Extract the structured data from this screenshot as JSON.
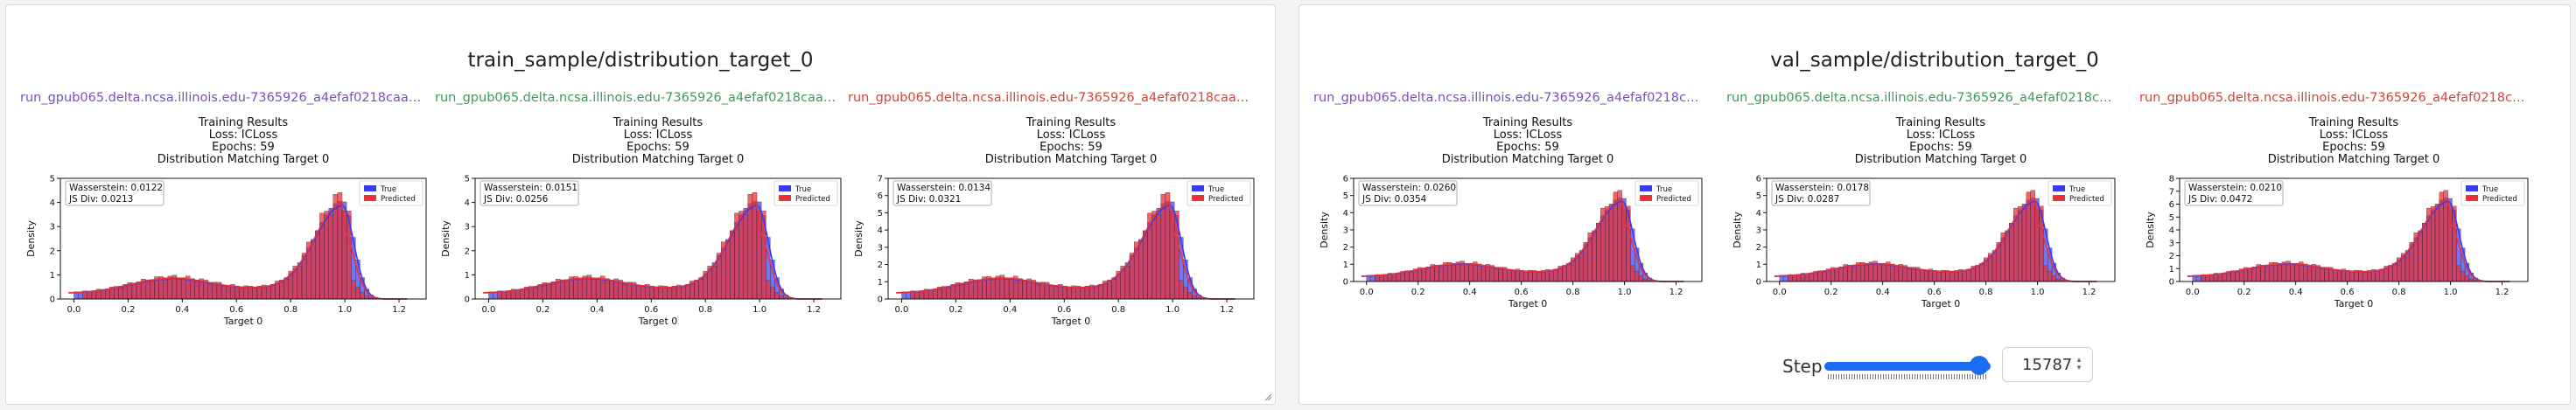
{
  "panels": [
    {
      "title": "train_sample/distribution_target_0",
      "charts": [
        {
          "run": "run_gpub065.delta.ncsa.illinois.edu-7365926_a4efaf0218caa7b49376cae...",
          "run_color": "#7b4fbf",
          "title_lines": [
            "Training Results",
            "Loss: ICLoss",
            "Epochs: 59",
            "Distribution Matching Target 0"
          ],
          "wasserstein": "Wasserstein: 0.0122",
          "js": "JS Div: 0.0213",
          "ymax": 5,
          "yticks": [
            0,
            1,
            2,
            3,
            4,
            5
          ]
        },
        {
          "run": "run_gpub065.delta.ncsa.illinois.edu-7365926_a4efaf0218caa7b49376cae...",
          "run_color": "#3f9a5b",
          "title_lines": [
            "Training Results",
            "Loss: ICLoss",
            "Epochs: 59",
            "Distribution Matching Target 0"
          ],
          "wasserstein": "Wasserstein: 0.0151",
          "js": "JS Div: 0.0256",
          "ymax": 5,
          "yticks": [
            0,
            1,
            2,
            3,
            4,
            5
          ]
        },
        {
          "run": "run_gpub065.delta.ncsa.illinois.edu-7365926_a4efaf0218caa7b49376cae...",
          "run_color": "#d2443c",
          "title_lines": [
            "Training Results",
            "Loss: ICLoss",
            "Epochs: 59",
            "Distribution Matching Target 0"
          ],
          "wasserstein": "Wasserstein: 0.0134",
          "js": "JS Div: 0.0321",
          "ymax": 7,
          "yticks": [
            0,
            1,
            2,
            3,
            4,
            5,
            6,
            7
          ]
        }
      ]
    },
    {
      "title": "val_sample/distribution_target_0",
      "charts": [
        {
          "run": "run_gpub065.delta.ncsa.illinois.edu-7365926_a4efaf0218caa7b493...",
          "run_color": "#7b4fbf",
          "title_lines": [
            "Training Results",
            "Loss: ICLoss",
            "Epochs: 59",
            "Distribution Matching Target 0"
          ],
          "wasserstein": "Wasserstein: 0.0260",
          "js": "JS Div: 0.0354",
          "ymax": 6,
          "yticks": [
            0,
            1,
            2,
            3,
            4,
            5,
            6
          ]
        },
        {
          "run": "run_gpub065.delta.ncsa.illinois.edu-7365926_a4efaf0218caa7b493...",
          "run_color": "#3f9a5b",
          "title_lines": [
            "Training Results",
            "Loss: ICLoss",
            "Epochs: 59",
            "Distribution Matching Target 0"
          ],
          "wasserstein": "Wasserstein: 0.0178",
          "js": "JS Div: 0.0287",
          "ymax": 6,
          "yticks": [
            0,
            1,
            2,
            3,
            4,
            5,
            6
          ]
        },
        {
          "run": "run_gpub065.delta.ncsa.illinois.edu-7365926_a4efaf0218caa7b493...",
          "run_color": "#d2443c",
          "title_lines": [
            "Training Results",
            "Loss: ICLoss",
            "Epochs: 59",
            "Distribution Matching Target 0"
          ],
          "wasserstein": "Wasserstein: 0.0210",
          "js": "JS Div: 0.0472",
          "ymax": 8,
          "yticks": [
            0,
            1,
            2,
            3,
            4,
            5,
            6,
            7,
            8
          ]
        }
      ]
    }
  ],
  "chart_common": {
    "xlabel": "Target 0",
    "ylabel": "Density",
    "xticks": [
      "0.0",
      "0.2",
      "0.4",
      "0.6",
      "0.8",
      "1.0",
      "1.2"
    ],
    "xlim": [
      -0.05,
      1.3
    ],
    "legend_true": "True",
    "legend_pred": "Predicted",
    "true_color": "#3a3af0",
    "pred_color": "#e8323a"
  },
  "step": {
    "label": "Step",
    "value": "15787",
    "fill_fraction": 0.93
  },
  "icons": {
    "spinner": "up-down-arrows-icon",
    "resize": "resize-handle-icon"
  }
}
